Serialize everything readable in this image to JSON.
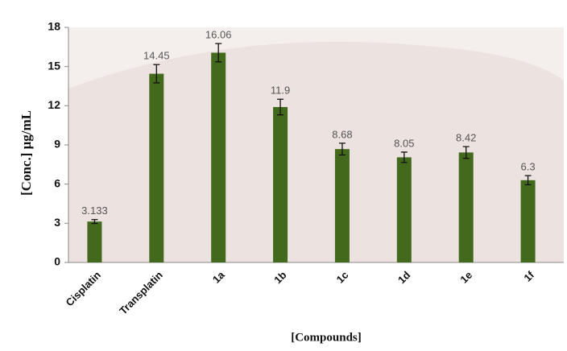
{
  "chart_data": {
    "type": "bar",
    "categories": [
      "Cisplatin",
      "Transplatin",
      "1a",
      "1b",
      "1c",
      "1d",
      "1e",
      "1f"
    ],
    "values": [
      3.133,
      14.45,
      16.06,
      11.9,
      8.68,
      8.05,
      8.42,
      6.3
    ],
    "errors": [
      0.15,
      0.7,
      0.7,
      0.6,
      0.45,
      0.4,
      0.45,
      0.35
    ],
    "color": "#436a1c",
    "ylim": [
      0,
      18
    ],
    "yticks": [
      0,
      3,
      6,
      9,
      12,
      15,
      18
    ],
    "xlabel": "[Compounds]",
    "ylabel": "[Conc.] μg/mL",
    "grid": false
  }
}
